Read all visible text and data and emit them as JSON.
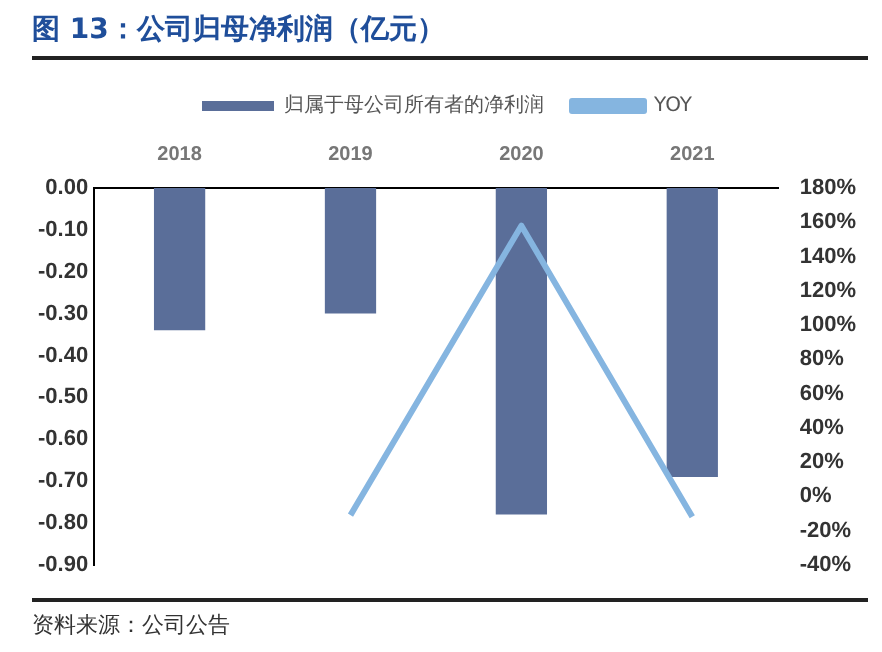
{
  "chart_data": {
    "type": "bar",
    "title": "图 13：公司归母净利润（亿元）",
    "annotations": [
      "资料来源：公司公告"
    ],
    "categories": [
      "2018",
      "2019",
      "2020",
      "2021"
    ],
    "series": [
      {
        "name": "归属于母公司所有者的净利润",
        "color": "#5a6e99",
        "values": [
          -0.34,
          -0.3,
          -0.78,
          -0.69
        ]
      },
      {
        "name": "YOY",
        "type": "line",
        "axis": "y2",
        "color": "#85b5e0",
        "values": [
          null,
          -11,
          158,
          -12
        ]
      }
    ],
    "ylim": [
      -0.9,
      0
    ],
    "yticks": [
      {
        "value": 0,
        "label": "0.00"
      },
      {
        "value": -0.1,
        "label": "-0.10"
      },
      {
        "value": -0.2,
        "label": "-0.20"
      },
      {
        "value": -0.3,
        "label": "-0.30"
      },
      {
        "value": -0.4,
        "label": "-0.40"
      },
      {
        "value": -0.5,
        "label": "-0.50"
      },
      {
        "value": -0.6,
        "label": "-0.60"
      },
      {
        "value": -0.7,
        "label": "-0.70"
      },
      {
        "value": -0.8,
        "label": "-0.80"
      },
      {
        "value": -0.9,
        "label": "-0.90"
      }
    ],
    "y2lim": [
      -40,
      180
    ],
    "y2ticks": [
      {
        "value": 180,
        "label": "180%"
      },
      {
        "value": 160,
        "label": "160%"
      },
      {
        "value": 140,
        "label": "140%"
      },
      {
        "value": 120,
        "label": "120%"
      },
      {
        "value": 100,
        "label": "100%"
      },
      {
        "value": 80,
        "label": "80%"
      },
      {
        "value": 60,
        "label": "60%"
      },
      {
        "value": 40,
        "label": "40%"
      },
      {
        "value": 20,
        "label": "20%"
      },
      {
        "value": 0,
        "label": "0%"
      },
      {
        "value": -20,
        "label": "-20%"
      },
      {
        "value": -40,
        "label": "-40%"
      }
    ],
    "legend": "top",
    "grid": false,
    "marker": "none"
  }
}
